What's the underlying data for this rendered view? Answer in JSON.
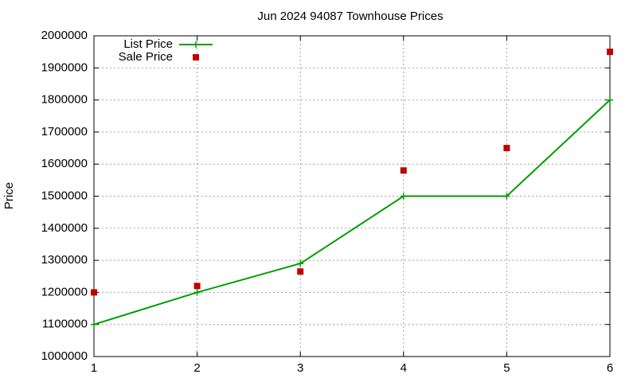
{
  "chart_data": {
    "type": "line",
    "title": "Jun 2024 94087 Townhouse Prices",
    "ylabel": "Price",
    "x": [
      1,
      2,
      3,
      4,
      5,
      6
    ],
    "series": [
      {
        "name": "List Price",
        "color": "#009e00",
        "style": "linespoints",
        "values": [
          1100000,
          1200000,
          1290000,
          1500000,
          1500000,
          1800000
        ]
      },
      {
        "name": "Sale Price",
        "color": "#c00000",
        "style": "points",
        "values": [
          1200000,
          1220000,
          1265000,
          1580000,
          1650000,
          1950000
        ]
      }
    ],
    "xlim": [
      1,
      6
    ],
    "xticks": [
      1,
      2,
      3,
      4,
      5,
      6
    ],
    "ylim": [
      1000000,
      2000000
    ],
    "yticks": [
      1000000,
      1100000,
      1200000,
      1300000,
      1400000,
      1500000,
      1600000,
      1700000,
      1800000,
      1900000,
      2000000
    ],
    "grid": true,
    "legend": "top-left"
  }
}
